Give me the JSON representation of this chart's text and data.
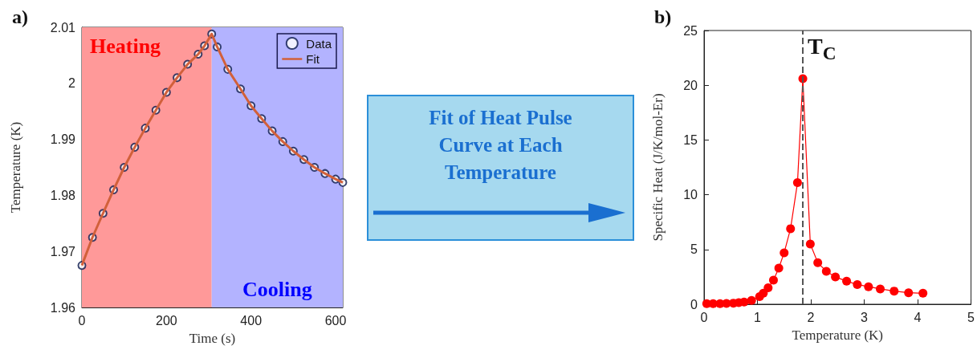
{
  "chart_data": [
    {
      "type": "scatter",
      "title": "a)",
      "xlabel": "Time (s)",
      "ylabel": "Temperature (K)",
      "xlim": [
        0,
        617
      ],
      "xticks": [
        0,
        200,
        400,
        600
      ],
      "ylim": [
        1.96,
        2.01
      ],
      "yticks": [
        1.96,
        1.97,
        1.98,
        1.99,
        2,
        2.01
      ],
      "legend": "top right",
      "grid": false,
      "x": [
        0,
        25,
        50,
        75,
        100,
        125,
        150,
        175,
        200,
        225,
        250,
        275,
        290,
        307,
        320,
        345,
        375,
        400,
        425,
        450,
        475,
        500,
        525,
        550,
        575,
        600,
        617
      ],
      "series": [
        {
          "name": "Data",
          "type": "scatter",
          "marker": "circle",
          "color": "#0d1a4d",
          "values": [
            1.9675,
            1.9725,
            1.9768,
            1.981,
            1.985,
            1.9886,
            1.992,
            1.9952,
            1.9984,
            2.001,
            2.0034,
            2.0052,
            2.0067,
            2.0088,
            2.0065,
            2.0025,
            1.999,
            1.996,
            1.9937,
            1.9915,
            1.9896,
            1.9879,
            1.9864,
            1.985,
            1.9839,
            1.9829,
            1.9823
          ]
        },
        {
          "name": "Fit",
          "type": "line",
          "marker": "none",
          "color": "#d2603a",
          "values": [
            1.9675,
            1.9725,
            1.9768,
            1.981,
            1.985,
            1.9886,
            1.992,
            1.9952,
            1.9984,
            2.001,
            2.0034,
            2.0052,
            2.0067,
            2.0088,
            2.0065,
            2.0025,
            1.999,
            1.996,
            1.9937,
            1.9915,
            1.9896,
            1.9879,
            1.9864,
            1.985,
            1.9839,
            1.9829,
            1.9823
          ]
        }
      ],
      "bands": [
        {
          "axis": "x",
          "from": 0,
          "to": 307,
          "label": "Heating",
          "color": "#ff9999"
        },
        {
          "axis": "x",
          "from": 307,
          "to": 617,
          "label": "Cooling",
          "color": "#b3b3ff"
        }
      ]
    },
    {
      "type": "other",
      "annotations": [
        "Fit of Heat Pulse Curve at Each Temperature"
      ]
    },
    {
      "type": "line",
      "title": "b)",
      "xlabel": "Temperature (K)",
      "ylabel": "Specific Heat (J/K/mol-Er)",
      "xlim": [
        0,
        5
      ],
      "xticks": [
        0,
        1,
        2,
        3,
        4,
        5
      ],
      "ylim": [
        0,
        25
      ],
      "yticks": [
        0,
        5,
        10,
        15,
        20,
        25
      ],
      "grid": false,
      "marker": "circle",
      "color": "#ff0000",
      "x": [
        0.05,
        0.17,
        0.3,
        0.42,
        0.55,
        0.65,
        0.75,
        0.89,
        1.04,
        1.11,
        1.2,
        1.3,
        1.4,
        1.5,
        1.62,
        1.75,
        1.85,
        1.99,
        2.13,
        2.29,
        2.46,
        2.67,
        2.87,
        3.08,
        3.3,
        3.56,
        3.83,
        4.1
      ],
      "values": [
        0.05,
        0.05,
        0.06,
        0.08,
        0.1,
        0.15,
        0.2,
        0.35,
        0.7,
        1,
        1.5,
        2.2,
        3.3,
        4.7,
        6.9,
        11.1,
        20.6,
        5.5,
        3.8,
        3,
        2.5,
        2.1,
        1.8,
        1.6,
        1.4,
        1.2,
        1.05,
        1
      ],
      "ref_lines": [
        {
          "axis": "x",
          "value": 1.85,
          "label": "T$_{C}$",
          "color": "#555555",
          "line_style": "dashed"
        }
      ]
    }
  ]
}
